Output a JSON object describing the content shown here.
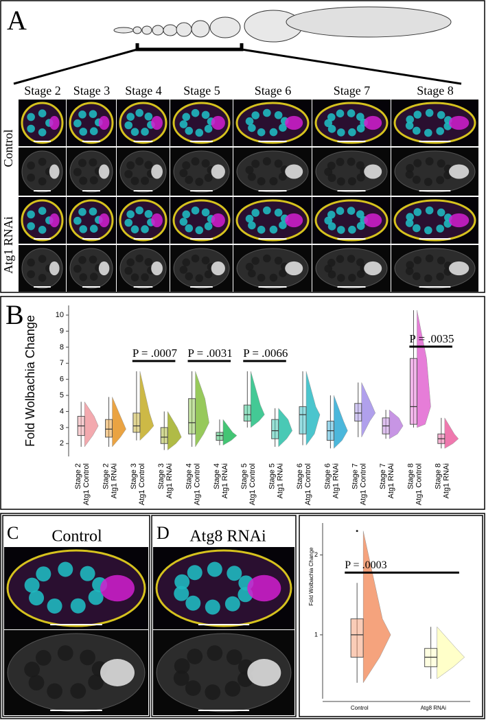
{
  "panel_a": {
    "label": "A",
    "stages": [
      "Stage 2",
      "Stage 3",
      "Stage 4",
      "Stage 5",
      "Stage 6",
      "Stage 7",
      "Stage 8"
    ],
    "conditions": [
      "Control",
      "Atg1 RNAi"
    ]
  },
  "panel_c": {
    "label": "C",
    "title": "Control"
  },
  "panel_d": {
    "label": "D",
    "title": "Atg8 RNAi"
  },
  "chart_data": [
    {
      "type": "violin",
      "label": "B",
      "y_label": "Fold Wolbachia Change",
      "categories": [
        [
          "Stage 2",
          "Atg1 Control"
        ],
        [
          "Stage 2",
          "Atg1 RNAi"
        ],
        [
          "Stage 3",
          "Atg1 Control"
        ],
        [
          "Stage 3",
          "Atg1 RNAi"
        ],
        [
          "Stage 4",
          "Atg1 Control"
        ],
        [
          "Stage 4",
          "Atg1 RNAi"
        ],
        [
          "Stage 5",
          "Atg1 Control"
        ],
        [
          "Stage 5",
          "Atg1 RNAi"
        ],
        [
          "Stage 6",
          "Atg1 Control"
        ],
        [
          "Stage 6",
          "Atg1 RNAi"
        ],
        [
          "Stage 7",
          "Atg1 Control"
        ],
        [
          "Stage 7",
          "Atg1 RNAi"
        ],
        [
          "Stage 8",
          "Atg1 Control"
        ],
        [
          "Stage 8",
          "Atg1 RNAi"
        ]
      ],
      "colors": [
        "#f2a0a6",
        "#e89a2e",
        "#c8b232",
        "#a8b432",
        "#8cc44a",
        "#2fbf66",
        "#30c48a",
        "#36c4ae",
        "#38bfc8",
        "#38b0d8",
        "#a896ea",
        "#c28ae2",
        "#e46fd4",
        "#ee6aa6"
      ],
      "boxes": [
        {
          "min": 1.8,
          "q1": 2.5,
          "median": 3.1,
          "q3": 3.7,
          "max": 4.6
        },
        {
          "min": 1.8,
          "q1": 2.4,
          "median": 2.9,
          "q3": 3.5,
          "max": 4.9
        },
        {
          "min": 2.2,
          "q1": 2.7,
          "median": 3.1,
          "q3": 3.9,
          "max": 6.5
        },
        {
          "min": 1.6,
          "q1": 2.0,
          "median": 2.4,
          "q3": 3.0,
          "max": 4.0
        },
        {
          "min": 1.8,
          "q1": 2.6,
          "median": 3.3,
          "q3": 4.8,
          "max": 6.5
        },
        {
          "min": 1.9,
          "q1": 2.2,
          "median": 2.5,
          "q3": 2.7,
          "max": 3.5
        },
        {
          "min": 3.0,
          "q1": 3.4,
          "median": 3.8,
          "q3": 4.4,
          "max": 6.5
        },
        {
          "min": 1.8,
          "q1": 2.3,
          "median": 2.8,
          "q3": 3.5,
          "max": 4.2
        },
        {
          "min": 1.9,
          "q1": 2.6,
          "median": 3.8,
          "q3": 4.3,
          "max": 6.5
        },
        {
          "min": 1.7,
          "q1": 2.2,
          "median": 2.8,
          "q3": 3.4,
          "max": 5.0
        },
        {
          "min": 2.4,
          "q1": 3.4,
          "median": 3.9,
          "q3": 4.5,
          "max": 5.8
        },
        {
          "min": 2.3,
          "q1": 2.6,
          "median": 3.1,
          "q3": 3.6,
          "max": 4.1
        },
        {
          "min": 3.0,
          "q1": 3.2,
          "median": 4.3,
          "q3": 7.3,
          "max": 10.3
        },
        {
          "min": 1.7,
          "q1": 2.0,
          "median": 2.3,
          "q3": 2.6,
          "max": 3.6
        }
      ],
      "ylim": [
        1.2,
        10.6
      ],
      "yticks": [
        2,
        3,
        4,
        5,
        6,
        7,
        8,
        9,
        10
      ],
      "annotations": [
        {
          "text": "P = .0007",
          "between": [
            2,
            3
          ]
        },
        {
          "text": "P = .0031",
          "between": [
            4,
            5
          ]
        },
        {
          "text": "P = .0066",
          "between": [
            6,
            7
          ]
        },
        {
          "text": "P = .0035",
          "between": [
            12,
            13
          ]
        }
      ]
    },
    {
      "type": "violin",
      "y_label": "Fold Wolbachia Change",
      "categories": [
        "Control",
        "Atg8 RNAi"
      ],
      "colors": [
        "#f59a70",
        "#ffffc4"
      ],
      "boxes": [
        {
          "min": 0.4,
          "q1": 0.72,
          "median": 1.0,
          "q3": 1.2,
          "max": 1.65
        },
        {
          "min": 0.45,
          "q1": 0.6,
          "median": 0.72,
          "q3": 0.83,
          "max": 1.1
        }
      ],
      "outliers": [
        [
          2.3
        ],
        []
      ],
      "ylim": [
        0.2,
        2.4
      ],
      "yticks": [
        1,
        2
      ],
      "annotations": [
        {
          "text": "P = .0003",
          "between": [
            0,
            1
          ]
        }
      ]
    }
  ]
}
